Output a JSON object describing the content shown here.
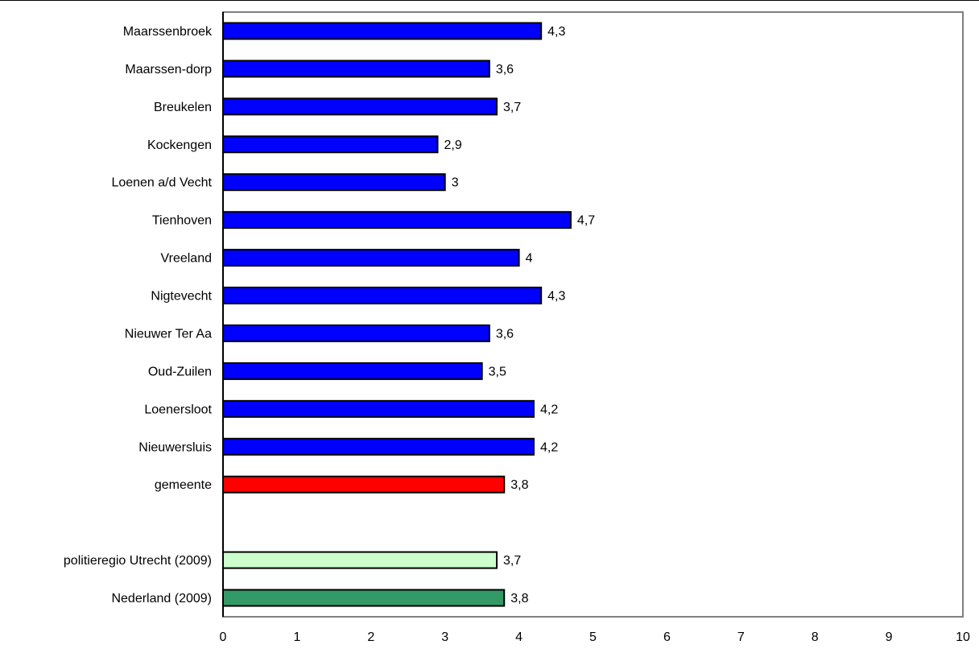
{
  "chart_data": {
    "type": "bar",
    "orientation": "horizontal",
    "categories": [
      "Maarssenbroek",
      "Maarssen-dorp",
      "Breukelen",
      "Kockengen",
      "Loenen a/d Vecht",
      "Tienhoven",
      "Vreeland",
      "Nigtevecht",
      "Nieuwer Ter Aa",
      "Oud-Zuilen",
      "Loenersloot",
      "Nieuwersluis",
      "gemeente",
      "",
      "politieregio Utrecht (2009)",
      "Nederland (2009)"
    ],
    "values": [
      4.3,
      3.6,
      3.7,
      2.9,
      3,
      4.7,
      4,
      4.3,
      3.6,
      3.5,
      4.2,
      4.2,
      3.8,
      null,
      3.7,
      3.8
    ],
    "data_labels": [
      "4,3",
      "3,6",
      "3,7",
      "2,9",
      "3",
      "4,7",
      "4",
      "4,3",
      "3,6",
      "3,5",
      "4,2",
      "4,2",
      "3,8",
      "",
      "3,7",
      "3,8"
    ],
    "bar_colors": [
      "#0000ff",
      "#0000ff",
      "#0000ff",
      "#0000ff",
      "#0000ff",
      "#0000ff",
      "#0000ff",
      "#0000ff",
      "#0000ff",
      "#0000ff",
      "#0000ff",
      "#0000ff",
      "#ff0000",
      "",
      "#ccffcc",
      "#339966"
    ],
    "xlim": [
      0,
      10
    ],
    "x_ticks": [
      "0",
      "1",
      "2",
      "3",
      "4",
      "5",
      "6",
      "7",
      "8",
      "9",
      "10"
    ],
    "grid": false,
    "title": "",
    "xlabel": "",
    "ylabel": ""
  }
}
